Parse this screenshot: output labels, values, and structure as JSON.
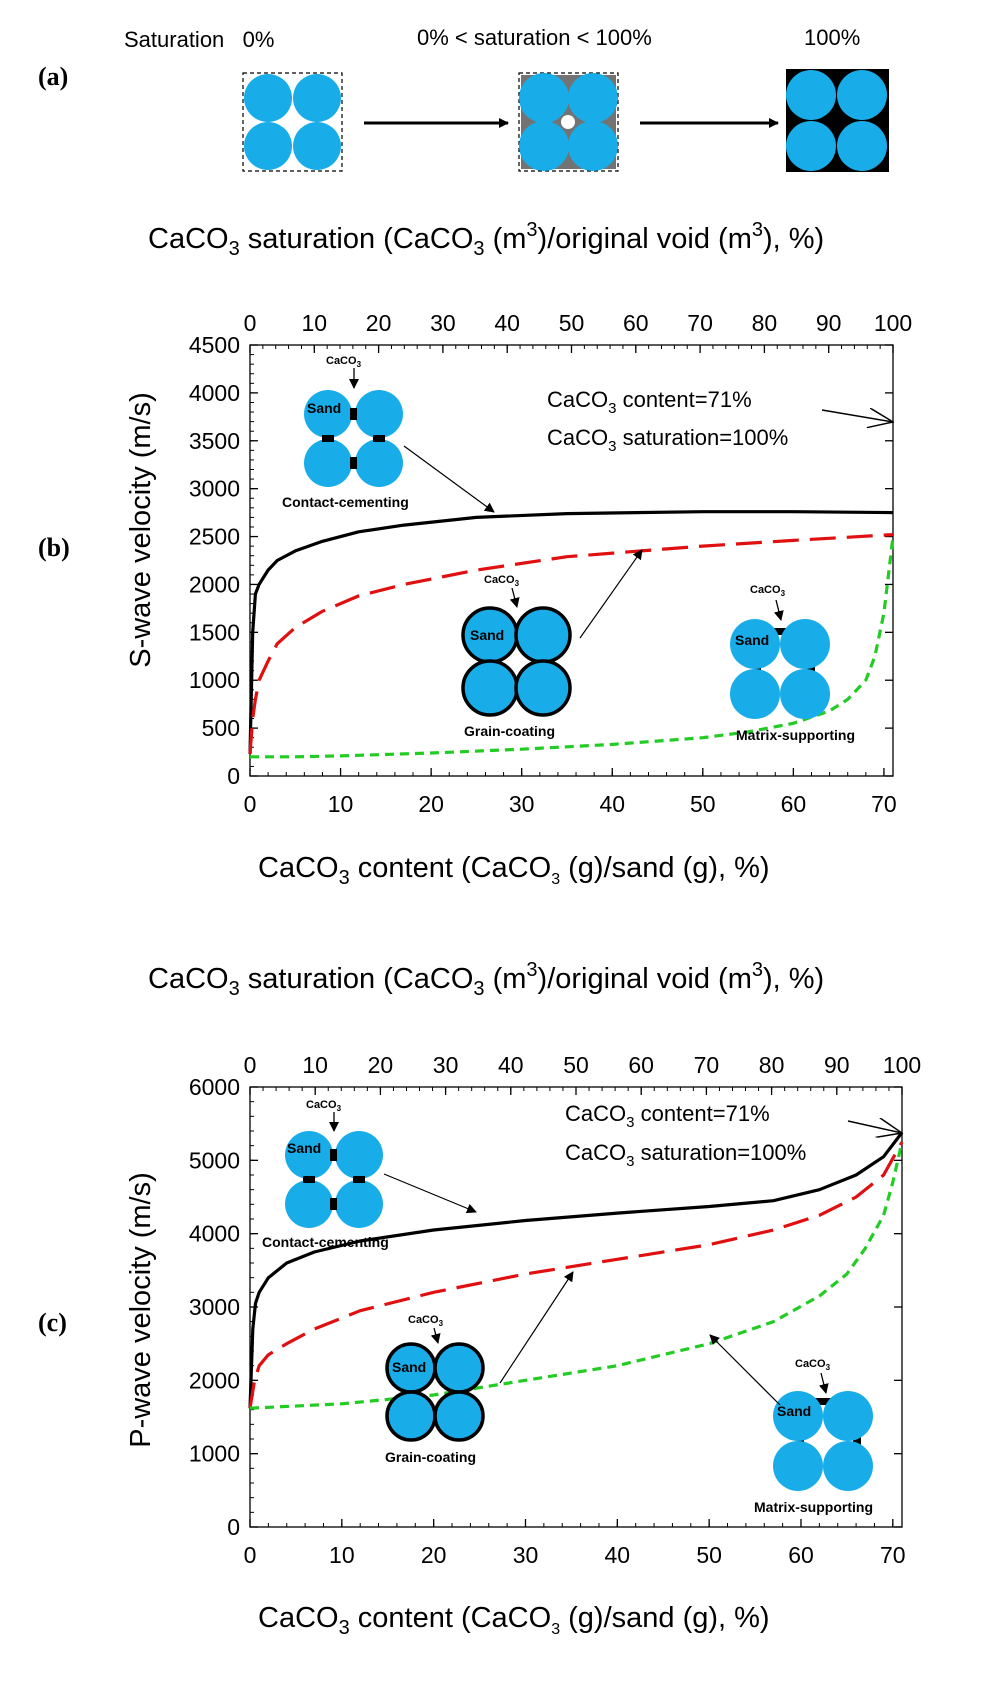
{
  "panel_a": {
    "letter": "(a)",
    "labels": [
      "Saturation   0%",
      "0% < saturation < 100%",
      "100%"
    ]
  },
  "colors": {
    "grain": "#18ade8",
    "cement": "#000000",
    "line_contact": "#000000",
    "line_coating": "#e01010",
    "line_matrix": "#22cc22"
  },
  "chart_data": [
    {
      "type": "line",
      "panel": "(b)",
      "top_axis_label": "CaCO3 saturation (CaCO3 (m3)/original void (m3), %)",
      "top_ticks": [
        "0",
        "10",
        "20",
        "30",
        "40",
        "50",
        "60",
        "70",
        "80",
        "90",
        "100"
      ],
      "xlabel": "CaCO3 content (CaCO3 (g)/sand (g), %)",
      "ylabel": "S-wave velocity (m/s)",
      "xlim": [
        0,
        71
      ],
      "ylim": [
        0,
        4500
      ],
      "x_ticks": [
        0,
        10,
        20,
        30,
        40,
        50,
        60,
        70
      ],
      "y_ticks": [
        0,
        500,
        1000,
        1500,
        2000,
        2500,
        3000,
        3500,
        4000,
        4500
      ],
      "series": [
        {
          "style": "solid",
          "color": "#000000",
          "x": [
            0,
            0.3,
            0.6,
            1,
            2,
            3,
            5,
            8,
            12,
            17,
            25,
            35,
            50,
            60,
            71
          ],
          "y": [
            230,
            1500,
            1900,
            2000,
            2150,
            2250,
            2350,
            2450,
            2550,
            2620,
            2700,
            2740,
            2760,
            2760,
            2750
          ]
        },
        {
          "style": "dashed",
          "color": "#e01010",
          "x": [
            0,
            0.3,
            0.6,
            1,
            2,
            3,
            5,
            8,
            12,
            17,
            25,
            35,
            50,
            60,
            71
          ],
          "y": [
            230,
            600,
            800,
            1000,
            1200,
            1380,
            1550,
            1720,
            1880,
            2000,
            2150,
            2290,
            2400,
            2460,
            2520
          ]
        },
        {
          "style": "dashed",
          "color": "#22cc22",
          "x": [
            0,
            5,
            10,
            20,
            30,
            40,
            50,
            55,
            60,
            64,
            66,
            68,
            69,
            70,
            71
          ],
          "y": [
            200,
            200,
            210,
            240,
            280,
            330,
            400,
            460,
            550,
            680,
            800,
            1000,
            1250,
            1700,
            2500
          ]
        }
      ],
      "annotations": {
        "target_line1": "CaCO3 content=71%",
        "target_line2": "CaCO3 saturation=100%",
        "cement_label": "CaCO3",
        "sand_label": "Sand",
        "contact": "Contact-cementing",
        "coating": "Grain-coating",
        "matrix": "Matrix-supporting"
      }
    },
    {
      "type": "line",
      "panel": "(c)",
      "top_axis_label": "CaCO3 saturation (CaCO3 (m3)/original void (m3), %)",
      "top_ticks": [
        "0",
        "10",
        "20",
        "30",
        "40",
        "50",
        "60",
        "70",
        "80",
        "90",
        "100"
      ],
      "xlabel": "CaCO3 content (CaCO3 (g)/sand (g), %)",
      "ylabel": "P-wave velocity (m/s)",
      "xlim": [
        0,
        71
      ],
      "ylim": [
        0,
        6000
      ],
      "x_ticks": [
        0,
        10,
        20,
        30,
        40,
        50,
        60,
        70
      ],
      "y_ticks": [
        0,
        1000,
        2000,
        3000,
        4000,
        5000,
        6000
      ],
      "series": [
        {
          "style": "solid",
          "color": "#000000",
          "x": [
            0,
            0.3,
            0.6,
            1,
            2,
            4,
            7,
            12,
            20,
            30,
            40,
            50,
            57,
            62,
            66,
            69,
            71
          ],
          "y": [
            1620,
            2700,
            3050,
            3200,
            3400,
            3600,
            3750,
            3900,
            4050,
            4180,
            4280,
            4370,
            4450,
            4600,
            4800,
            5050,
            5380
          ]
        },
        {
          "style": "dashed",
          "color": "#e01010",
          "x": [
            0,
            0.5,
            1,
            2,
            4,
            7,
            12,
            20,
            30,
            40,
            50,
            57,
            62,
            66,
            69,
            71
          ],
          "y": [
            1620,
            2000,
            2200,
            2350,
            2500,
            2700,
            2950,
            3200,
            3450,
            3650,
            3850,
            4050,
            4250,
            4500,
            4800,
            5250
          ]
        },
        {
          "style": "dashed",
          "color": "#22cc22",
          "x": [
            0,
            10,
            20,
            30,
            40,
            50,
            57,
            62,
            65,
            67,
            69,
            70,
            71
          ],
          "y": [
            1620,
            1680,
            1800,
            2000,
            2200,
            2500,
            2800,
            3150,
            3450,
            3800,
            4250,
            4700,
            5250
          ]
        }
      ],
      "annotations": {
        "target_line1": "CaCO3 content=71%",
        "target_line2": "CaCO3 saturation=100%",
        "cement_label": "CaCO3",
        "sand_label": "Sand",
        "contact": "Contact-cementing",
        "coating": "Grain-coating",
        "matrix": "Matrix-supporting"
      }
    }
  ]
}
